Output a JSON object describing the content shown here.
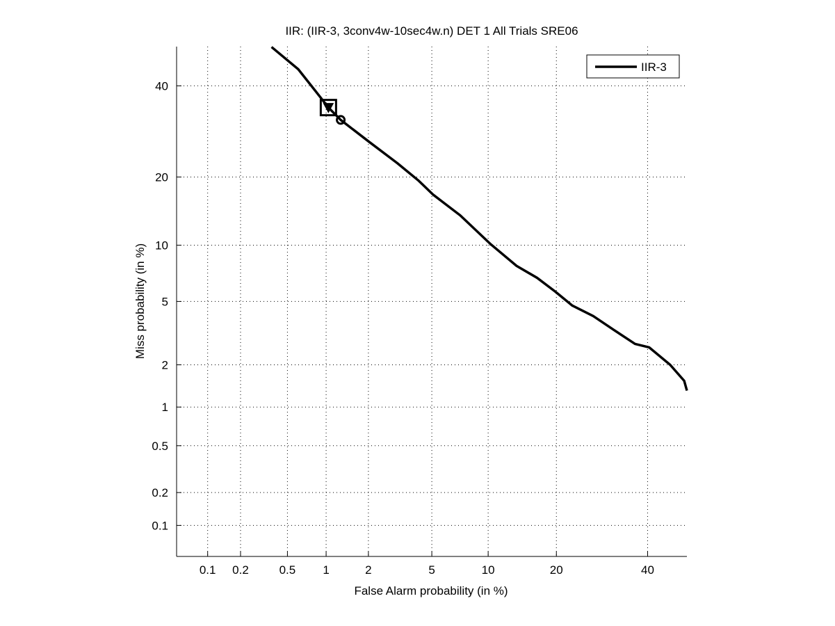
{
  "chart_data": {
    "type": "line",
    "title": "IIR: (IIR-3, 3conv4w-10sec4w.n) DET 1 All Trials SRE06",
    "xlabel": "False Alarm probability (in %)",
    "ylabel": "Miss probability (in %)",
    "scale": "normal-deviate",
    "xlim": [
      0.05,
      50
    ],
    "ylim": [
      0.05,
      50
    ],
    "xticks": [
      0.1,
      0.2,
      0.5,
      1,
      2,
      5,
      10,
      20,
      40
    ],
    "xtick_labels": [
      "0.1",
      "0.2",
      "0.5",
      "1",
      "2",
      "5",
      "10",
      "20",
      "40"
    ],
    "yticks": [
      0.1,
      0.2,
      0.5,
      1,
      2,
      5,
      10,
      20,
      40
    ],
    "ytick_labels": [
      "0.1",
      "0.2",
      "0.5",
      "1",
      "2",
      "5",
      "10",
      "20",
      "40"
    ],
    "grid": true,
    "legend": {
      "placement": "top-right",
      "entries": [
        "IIR-3"
      ]
    },
    "series": [
      {
        "name": "IIR-3",
        "color": "#000000",
        "x": [
          0.37,
          0.61,
          0.9,
          1.04,
          1.28,
          2.03,
          3.09,
          4.16,
          5.07,
          7.19,
          10.3,
          13.6,
          16.7,
          19.8,
          23.0,
          27.3,
          31.9,
          36.9,
          40.4,
          45.7,
          49.3,
          50.5
        ],
        "y": [
          49.9,
          44.2,
          37.3,
          34.7,
          31.8,
          26.9,
          22.6,
          19.4,
          17.0,
          13.8,
          10.1,
          7.85,
          6.78,
          5.69,
          4.73,
          4.1,
          3.37,
          2.75,
          2.61,
          2.0,
          1.55,
          1.32
        ]
      }
    ],
    "markers": [
      {
        "name": "actual-decision-square",
        "shape": "square",
        "x": 1.04,
        "y": 34.7
      },
      {
        "name": "actual-decision-triangle",
        "shape": "triangle-down",
        "x": 1.04,
        "y": 34.7
      },
      {
        "name": "min-dcf-circle",
        "shape": "circle",
        "x": 1.28,
        "y": 31.8
      }
    ]
  }
}
